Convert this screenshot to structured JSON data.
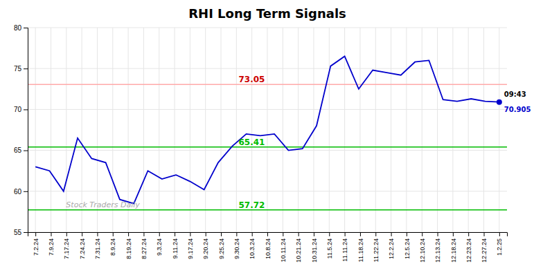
{
  "chart_data": {
    "type": "line",
    "title": "RHI Long Term Signals",
    "x": [
      0,
      0.9090909090909091,
      1.8181818181818181,
      2.727272727272727,
      3.6363636363636362,
      4.545454545454545,
      5.454545454545454,
      6.363636363636363,
      7.2727272727272725,
      8.181818181818182,
      9.090909090909092,
      10,
      10.909090909090908,
      11.818181818181818,
      12.727272727272727,
      13.636363636363637,
      14.545454545454545,
      15.454545454545455,
      16.363636363636363,
      17.272727272727273,
      18.181818181818183,
      19.09090909090909,
      20,
      20.90909090909091,
      21.818181818181817,
      22.727272727272727,
      23.636363636363637,
      24.545454545454547,
      25.454545454545453,
      26.363636363636363,
      27.272727272727273,
      28.181818181818183,
      29.09090909090909,
      30
    ],
    "values": [
      63.0,
      62.5,
      60.0,
      66.5,
      64.0,
      63.5,
      59.0,
      58.5,
      62.5,
      61.5,
      62.0,
      61.2,
      60.2,
      63.5,
      65.5,
      67.0,
      66.8,
      67.0,
      65.0,
      65.2,
      68.0,
      75.3,
      76.5,
      72.5,
      74.8,
      74.5,
      74.2,
      75.8,
      76.0,
      71.2,
      71.0,
      71.3,
      71.0,
      70.905
    ],
    "color": "#0000cc",
    "xlim": [
      -0.5,
      30.5
    ],
    "xticks": [
      {
        "value": 0,
        "label": "7.2.24"
      },
      {
        "value": 1,
        "label": "7.9.24"
      },
      {
        "value": 2,
        "label": "7.17.24"
      },
      {
        "value": 3,
        "label": "7.24.24"
      },
      {
        "value": 4,
        "label": "7.31.24"
      },
      {
        "value": 5,
        "label": "8.9.24"
      },
      {
        "value": 6,
        "label": "8.19.24"
      },
      {
        "value": 7,
        "label": "8.27.24"
      },
      {
        "value": 8,
        "label": "9.3.24"
      },
      {
        "value": 9,
        "label": "9.11.24"
      },
      {
        "value": 10,
        "label": "9.17.24"
      },
      {
        "value": 11,
        "label": "9.20.24"
      },
      {
        "value": 12,
        "label": "9.25.24"
      },
      {
        "value": 13,
        "label": "9.30.24"
      },
      {
        "value": 14,
        "label": "10.3.24"
      },
      {
        "value": 15,
        "label": "10.8.24"
      },
      {
        "value": 16,
        "label": "10.11.24"
      },
      {
        "value": 17,
        "label": "10.21.24"
      },
      {
        "value": 18,
        "label": "10.31.24"
      },
      {
        "value": 19,
        "label": "11.5.24"
      },
      {
        "value": 20,
        "label": "11.11.24"
      },
      {
        "value": 21,
        "label": "11.18.24"
      },
      {
        "value": 22,
        "label": "11.22.24"
      },
      {
        "value": 23,
        "label": "12.2.24"
      },
      {
        "value": 24,
        "label": "12.5.24"
      },
      {
        "value": 25,
        "label": "12.10.24"
      },
      {
        "value": 26,
        "label": "12.13.24"
      },
      {
        "value": 27,
        "label": "12.18.24"
      },
      {
        "value": 28,
        "label": "12.23.24"
      },
      {
        "value": 29,
        "label": "12.27.24"
      },
      {
        "value": 30,
        "label": "1.2.25"
      }
    ],
    "ylim": [
      55,
      80
    ],
    "yticks": [
      55,
      60,
      65,
      70,
      75,
      80
    ],
    "grid": true,
    "hlines": [
      {
        "value": 73.05,
        "color": "#ffaaaa",
        "label_color": "#cc0000"
      },
      {
        "value": 65.41,
        "color": "#00bb00",
        "label_color": "#00bb00"
      },
      {
        "value": 57.72,
        "color": "#00bb00",
        "label_color": "#00bb00"
      }
    ],
    "last_point": {
      "x": 30,
      "value": 70.905,
      "time": "09:43",
      "color": "#0000cc",
      "marker": "circle"
    },
    "watermark": "Stock Traders Daily",
    "watermark_color": "#aaaaaa"
  }
}
